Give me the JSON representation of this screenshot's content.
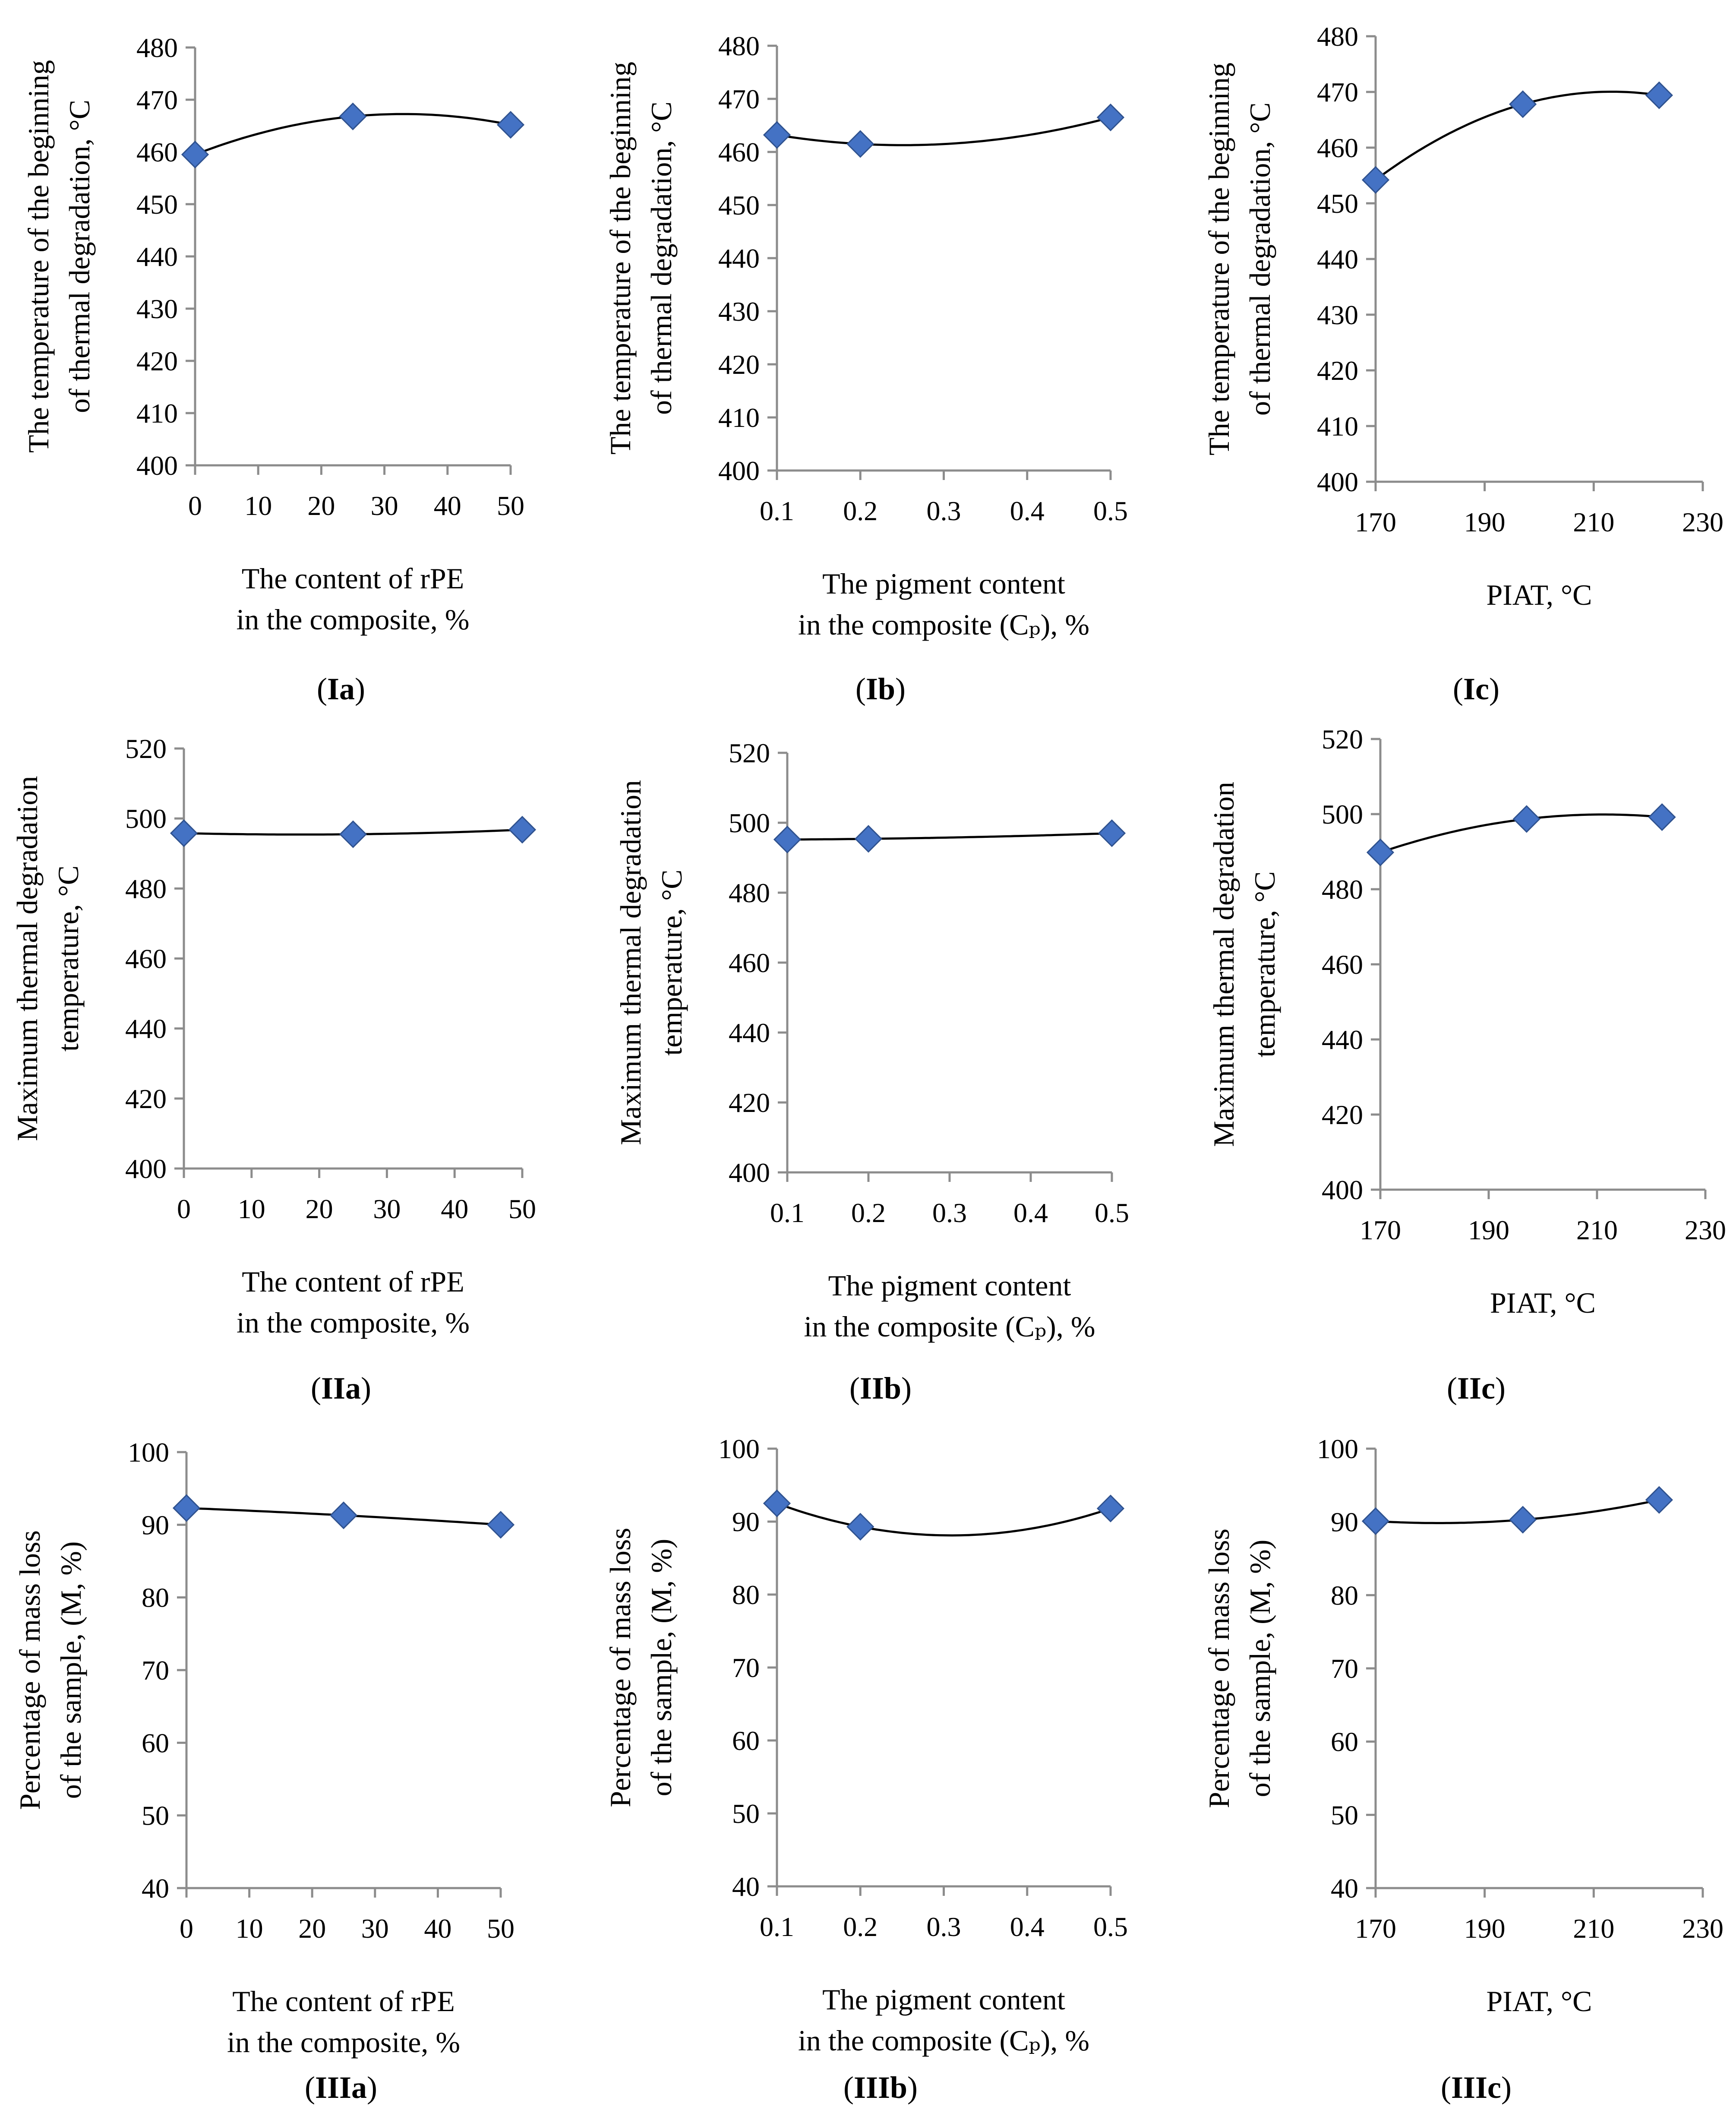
{
  "chart_data": [
    {
      "id": "Ia",
      "type": "scatter",
      "panel_label": {
        "pre": "(",
        "bold": "Ia",
        "post": ")"
      },
      "xlabel_lines": [
        "The content of rPE",
        "in the composite, %"
      ],
      "ylabel_lines": [
        "The temperature of the beginning",
        "of thermal degradation, °C"
      ],
      "xlim": [
        0,
        50
      ],
      "xticks": [
        "0",
        "10",
        "20",
        "30",
        "40",
        "50"
      ],
      "xtick_values": [
        0,
        10,
        20,
        30,
        40,
        50
      ],
      "ylim": [
        400,
        480
      ],
      "yticks": [
        "400",
        "410",
        "420",
        "430",
        "440",
        "450",
        "460",
        "470",
        "480"
      ],
      "ytick_values": [
        400,
        410,
        420,
        430,
        440,
        450,
        460,
        470,
        480
      ],
      "points": [
        {
          "x": 0,
          "y": 459.5
        },
        {
          "x": 25,
          "y": 466.8
        },
        {
          "x": 50,
          "y": 465.2
        }
      ],
      "trendline": "poly2"
    },
    {
      "id": "Ib",
      "type": "scatter",
      "panel_label": {
        "pre": "(",
        "bold": "Ib",
        "post": ")"
      },
      "xlabel_lines": [
        "The pigment content",
        "in the composite (Cₚ), %"
      ],
      "ylabel_lines": [
        "The temperature of the beginning",
        "of thermal degradation, °C"
      ],
      "xlim": [
        0.1,
        0.5
      ],
      "xticks": [
        "0.1",
        "0.2",
        "0.3",
        "0.4",
        "0.5"
      ],
      "xtick_values": [
        0.1,
        0.2,
        0.3,
        0.4,
        0.5
      ],
      "ylim": [
        400,
        480
      ],
      "yticks": [
        "400",
        "410",
        "420",
        "430",
        "440",
        "450",
        "460",
        "470",
        "480"
      ],
      "ytick_values": [
        400,
        410,
        420,
        430,
        440,
        450,
        460,
        470,
        480
      ],
      "points": [
        {
          "x": 0.1,
          "y": 463.2
        },
        {
          "x": 0.2,
          "y": 461.5
        },
        {
          "x": 0.5,
          "y": 466.5
        }
      ],
      "trendline": "poly2"
    },
    {
      "id": "Ic",
      "type": "scatter",
      "panel_label": {
        "pre": "(",
        "bold": "Ic",
        "post": ")"
      },
      "xlabel_lines": [
        "PIAT, °C"
      ],
      "ylabel_lines": [
        "The temperature of the beginning",
        "of thermal degradation, °C"
      ],
      "xlim": [
        170,
        230
      ],
      "xticks": [
        "170",
        "190",
        "210",
        "230"
      ],
      "xtick_values": [
        170,
        190,
        210,
        230
      ],
      "ylim": [
        400,
        480
      ],
      "yticks": [
        "400",
        "410",
        "420",
        "430",
        "440",
        "450",
        "460",
        "470",
        "480"
      ],
      "ytick_values": [
        400,
        410,
        420,
        430,
        440,
        450,
        460,
        470,
        480
      ],
      "points": [
        {
          "x": 170,
          "y": 454.2
        },
        {
          "x": 197,
          "y": 467.8
        },
        {
          "x": 222,
          "y": 469.4
        }
      ],
      "trendline": "poly2"
    },
    {
      "id": "IIa",
      "type": "scatter",
      "panel_label": {
        "pre": "(",
        "bold": "IIa",
        "post": ")"
      },
      "xlabel_lines": [
        "The content of rPE",
        "in the composite, %"
      ],
      "ylabel_lines": [
        "Maximum thermal degradation",
        "temperature, °C"
      ],
      "xlim": [
        0,
        50
      ],
      "xticks": [
        "0",
        "10",
        "20",
        "30",
        "40",
        "50"
      ],
      "xtick_values": [
        0,
        10,
        20,
        30,
        40,
        50
      ],
      "ylim": [
        400,
        520
      ],
      "yticks": [
        "400",
        "420",
        "440",
        "460",
        "480",
        "500",
        "520"
      ],
      "ytick_values": [
        400,
        420,
        440,
        460,
        480,
        500,
        520
      ],
      "points": [
        {
          "x": 0,
          "y": 495.8
        },
        {
          "x": 25,
          "y": 495.5
        },
        {
          "x": 50,
          "y": 496.8
        }
      ],
      "trendline": "poly2"
    },
    {
      "id": "IIb",
      "type": "scatter",
      "panel_label": {
        "pre": "(",
        "bold": "IIb",
        "post": ")"
      },
      "xlabel_lines": [
        "The pigment content",
        "in the composite (Cₚ), %"
      ],
      "ylabel_lines": [
        "Maximum thermal degradation",
        "temperature, °C"
      ],
      "xlim": [
        0.1,
        0.5
      ],
      "xticks": [
        "0.1",
        "0.2",
        "0.3",
        "0.4",
        "0.5"
      ],
      "xtick_values": [
        0.1,
        0.2,
        0.3,
        0.4,
        0.5
      ],
      "ylim": [
        400,
        520
      ],
      "yticks": [
        "400",
        "420",
        "440",
        "460",
        "480",
        "500",
        "520"
      ],
      "ytick_values": [
        400,
        420,
        440,
        460,
        480,
        500,
        520
      ],
      "points": [
        {
          "x": 0.1,
          "y": 495.2
        },
        {
          "x": 0.2,
          "y": 495.4
        },
        {
          "x": 0.5,
          "y": 497.0
        }
      ],
      "trendline": "poly2"
    },
    {
      "id": "IIc",
      "type": "scatter",
      "panel_label": {
        "pre": "(",
        "bold": "IIc",
        "post": ")"
      },
      "xlabel_lines": [
        "PIAT, °C"
      ],
      "ylabel_lines": [
        "Maximum thermal degradation",
        "temperature, °C"
      ],
      "xlim": [
        170,
        230
      ],
      "xticks": [
        "170",
        "190",
        "210",
        "230"
      ],
      "xtick_values": [
        170,
        190,
        210,
        230
      ],
      "ylim": [
        400,
        520
      ],
      "yticks": [
        "400",
        "420",
        "440",
        "460",
        "480",
        "500",
        "520"
      ],
      "ytick_values": [
        400,
        420,
        440,
        460,
        480,
        500,
        520
      ],
      "points": [
        {
          "x": 170,
          "y": 489.8
        },
        {
          "x": 197,
          "y": 498.7
        },
        {
          "x": 222,
          "y": 499.2
        }
      ],
      "trendline": "poly2"
    },
    {
      "id": "IIIa",
      "type": "scatter",
      "panel_label": {
        "pre": "(",
        "bold": "IIIa",
        "post": ")"
      },
      "xlabel_lines": [
        "The content of rPE",
        "in the composite, %"
      ],
      "ylabel_lines": [
        "Percentage of mass loss",
        "of the sample, (M, %)"
      ],
      "xlim": [
        0,
        50
      ],
      "xticks": [
        "0",
        "10",
        "20",
        "30",
        "40",
        "50"
      ],
      "xtick_values": [
        0,
        10,
        20,
        30,
        40,
        50
      ],
      "ylim": [
        40,
        100
      ],
      "yticks": [
        "40",
        "50",
        "60",
        "70",
        "80",
        "90",
        "100"
      ],
      "ytick_values": [
        40,
        50,
        60,
        70,
        80,
        90,
        100
      ],
      "points": [
        {
          "x": 0,
          "y": 92.3
        },
        {
          "x": 25,
          "y": 91.3
        },
        {
          "x": 50,
          "y": 90.0
        }
      ],
      "trendline": "poly2"
    },
    {
      "id": "IIIb",
      "type": "scatter",
      "panel_label": {
        "pre": "(",
        "bold": "IIIb",
        "post": ")"
      },
      "xlabel_lines": [
        "The pigment content",
        "in the composite (Cₚ), %"
      ],
      "ylabel_lines": [
        "Percentage of mass loss",
        "of the sample, (M, %)"
      ],
      "xlim": [
        0.1,
        0.5
      ],
      "xticks": [
        "0.1",
        "0.2",
        "0.3",
        "0.4",
        "0.5"
      ],
      "xtick_values": [
        0.1,
        0.2,
        0.3,
        0.4,
        0.5
      ],
      "ylim": [
        40,
        100
      ],
      "yticks": [
        "40",
        "50",
        "60",
        "70",
        "80",
        "90",
        "100"
      ],
      "ytick_values": [
        40,
        50,
        60,
        70,
        80,
        90,
        100
      ],
      "points": [
        {
          "x": 0.1,
          "y": 92.5
        },
        {
          "x": 0.2,
          "y": 89.3
        },
        {
          "x": 0.5,
          "y": 91.8
        }
      ],
      "trendline": "poly2"
    },
    {
      "id": "IIIc",
      "type": "scatter",
      "panel_label": {
        "pre": "(",
        "bold": "IIIc",
        "post": ")"
      },
      "xlabel_lines": [
        "PIAT, °C"
      ],
      "ylabel_lines": [
        "Percentage of mass loss",
        "of the sample, (M, %)"
      ],
      "xlim": [
        170,
        230
      ],
      "xticks": [
        "170",
        "190",
        "210",
        "230"
      ],
      "xtick_values": [
        170,
        190,
        210,
        230
      ],
      "ylim": [
        40,
        100
      ],
      "yticks": [
        "40",
        "50",
        "60",
        "70",
        "80",
        "90",
        "100"
      ],
      "ytick_values": [
        40,
        50,
        60,
        70,
        80,
        90,
        100
      ],
      "points": [
        {
          "x": 170,
          "y": 90.1
        },
        {
          "x": 197,
          "y": 90.3
        },
        {
          "x": 222,
          "y": 93.0
        }
      ],
      "trendline": "poly2"
    }
  ],
  "colors": {
    "marker": "#4472c4",
    "marker_edge": "#2f528f",
    "axis": "#8c8c8c",
    "trendline": "#000000"
  }
}
